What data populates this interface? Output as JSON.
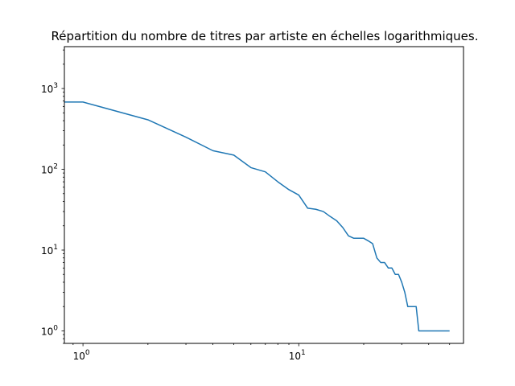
{
  "chart_data": {
    "type": "line",
    "title": "Répartition du nombre de titres par artiste en échelles logarithmiques.",
    "xlabel": "",
    "ylabel": "",
    "xscale": "log",
    "yscale": "log",
    "xlim": [
      0.82,
      58
    ],
    "ylim": [
      0.7,
      3300
    ],
    "grid": false,
    "x_ticks": [
      {
        "value": 1,
        "base": "10",
        "exp": "0"
      },
      {
        "value": 10,
        "base": "10",
        "exp": "1"
      }
    ],
    "y_ticks": [
      {
        "value": 1,
        "base": "10",
        "exp": "0"
      },
      {
        "value": 10,
        "base": "10",
        "exp": "1"
      },
      {
        "value": 100,
        "base": "10",
        "exp": "2"
      },
      {
        "value": 1000,
        "base": "10",
        "exp": "3"
      }
    ],
    "series": [
      {
        "color": "#1f77b4",
        "x": [
          0.82,
          1,
          2,
          3,
          4,
          5,
          6,
          7,
          8,
          9,
          10,
          11,
          12,
          13,
          14,
          15,
          16,
          17,
          18,
          19,
          20,
          21,
          22,
          23,
          24,
          25,
          26,
          27,
          28,
          29,
          30,
          31,
          32,
          33,
          34,
          35,
          36,
          37,
          38,
          39,
          40,
          45,
          50
        ],
        "y": [
          680,
          680,
          410,
          250,
          170,
          150,
          105,
          93,
          70,
          56,
          48,
          33,
          32,
          30,
          26,
          23,
          19,
          15,
          14,
          14,
          14,
          13,
          12,
          8,
          7,
          7,
          6,
          6,
          5,
          5,
          4,
          3,
          2,
          2,
          2,
          2,
          1,
          1,
          1,
          1,
          1,
          1,
          1
        ]
      }
    ]
  }
}
